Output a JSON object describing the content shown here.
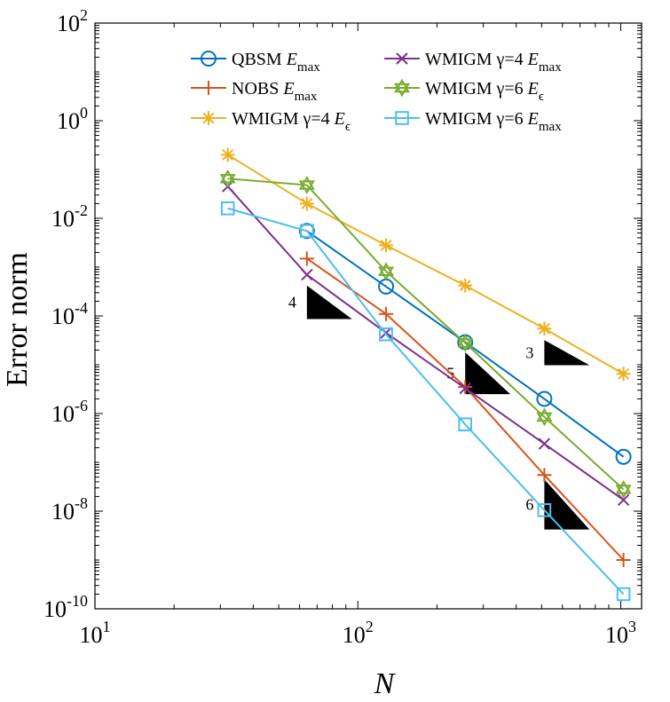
{
  "chart_data": {
    "type": "line",
    "xscale": "log",
    "yscale": "log",
    "xlabel": "N",
    "ylabel": "Error norm",
    "xlim": [
      10,
      1200
    ],
    "ylim": [
      1e-10,
      100
    ],
    "x_ticks": [
      {
        "value": 10,
        "base": "10",
        "exp": "1"
      },
      {
        "value": 100,
        "base": "10",
        "exp": "2"
      },
      {
        "value": 1000,
        "base": "10",
        "exp": "3"
      }
    ],
    "y_ticks": [
      {
        "value": 1e-10,
        "base": "10",
        "exp": "-10"
      },
      {
        "value": 1e-08,
        "base": "10",
        "exp": "-8"
      },
      {
        "value": 1e-06,
        "base": "10",
        "exp": "-6"
      },
      {
        "value": 0.0001,
        "base": "10",
        "exp": "-4"
      },
      {
        "value": 0.01,
        "base": "10",
        "exp": "-2"
      },
      {
        "value": 1,
        "base": "10",
        "exp": "0"
      },
      {
        "value": 100,
        "base": "10",
        "exp": "2"
      }
    ],
    "series": [
      {
        "name": "QBSM",
        "sub": "max",
        "marker": "circle",
        "color": "#0072BD",
        "x": [
          64,
          128,
          256,
          512,
          1024
        ],
        "y": [
          0.0055,
          0.0004,
          2.9e-05,
          2e-06,
          1.3e-07
        ]
      },
      {
        "name": "NOBS",
        "sub": "max",
        "marker": "plus",
        "color": "#D95319",
        "x": [
          64,
          128,
          256,
          512,
          1024
        ],
        "y": [
          0.0015,
          0.00011,
          3.5e-06,
          5.5e-08,
          1e-09
        ]
      },
      {
        "name": "WMIGM γ=4",
        "sub": "ϵ",
        "marker": "asterisk",
        "color": "#EDB120",
        "x": [
          32,
          64,
          128,
          256,
          512,
          1024
        ],
        "y": [
          0.2,
          0.02,
          0.0028,
          0.00042,
          5.5e-05,
          6.5e-06
        ]
      },
      {
        "name": "WMIGM γ=4",
        "sub": "max",
        "marker": "x",
        "color": "#7E2F8E",
        "x": [
          32,
          64,
          128,
          256,
          512,
          1024
        ],
        "y": [
          0.045,
          0.0007,
          4.5e-05,
          3.3e-06,
          2.4e-07,
          1.7e-08
        ]
      },
      {
        "name": "WMIGM γ=6",
        "sub": "ϵ",
        "marker": "hexagram",
        "color": "#77AC30",
        "x": [
          32,
          64,
          128,
          256,
          512,
          1024
        ],
        "y": [
          0.065,
          0.048,
          0.00082,
          2.8e-05,
          8.5e-07,
          2.8e-08
        ]
      },
      {
        "name": "WMIGM γ=6",
        "sub": "max",
        "marker": "square",
        "color": "#4DBEEE",
        "x": [
          32,
          64,
          128,
          256,
          512,
          1024
        ],
        "y": [
          0.016,
          0.0055,
          4.2e-05,
          6e-07,
          1.05e-08,
          2e-10
        ]
      }
    ],
    "slope_triangles": [
      {
        "label": "4",
        "x": [
          64,
          95
        ],
        "y_top": 0.00042
      },
      {
        "label": "5",
        "x": [
          256,
          380
        ],
        "y_top": 1.8e-05
      },
      {
        "label": "3",
        "x": [
          512,
          760
        ],
        "y_top": 3.2e-05
      },
      {
        "label": "6",
        "x": [
          512,
          760
        ],
        "y_top": 4.5e-08
      }
    ]
  }
}
